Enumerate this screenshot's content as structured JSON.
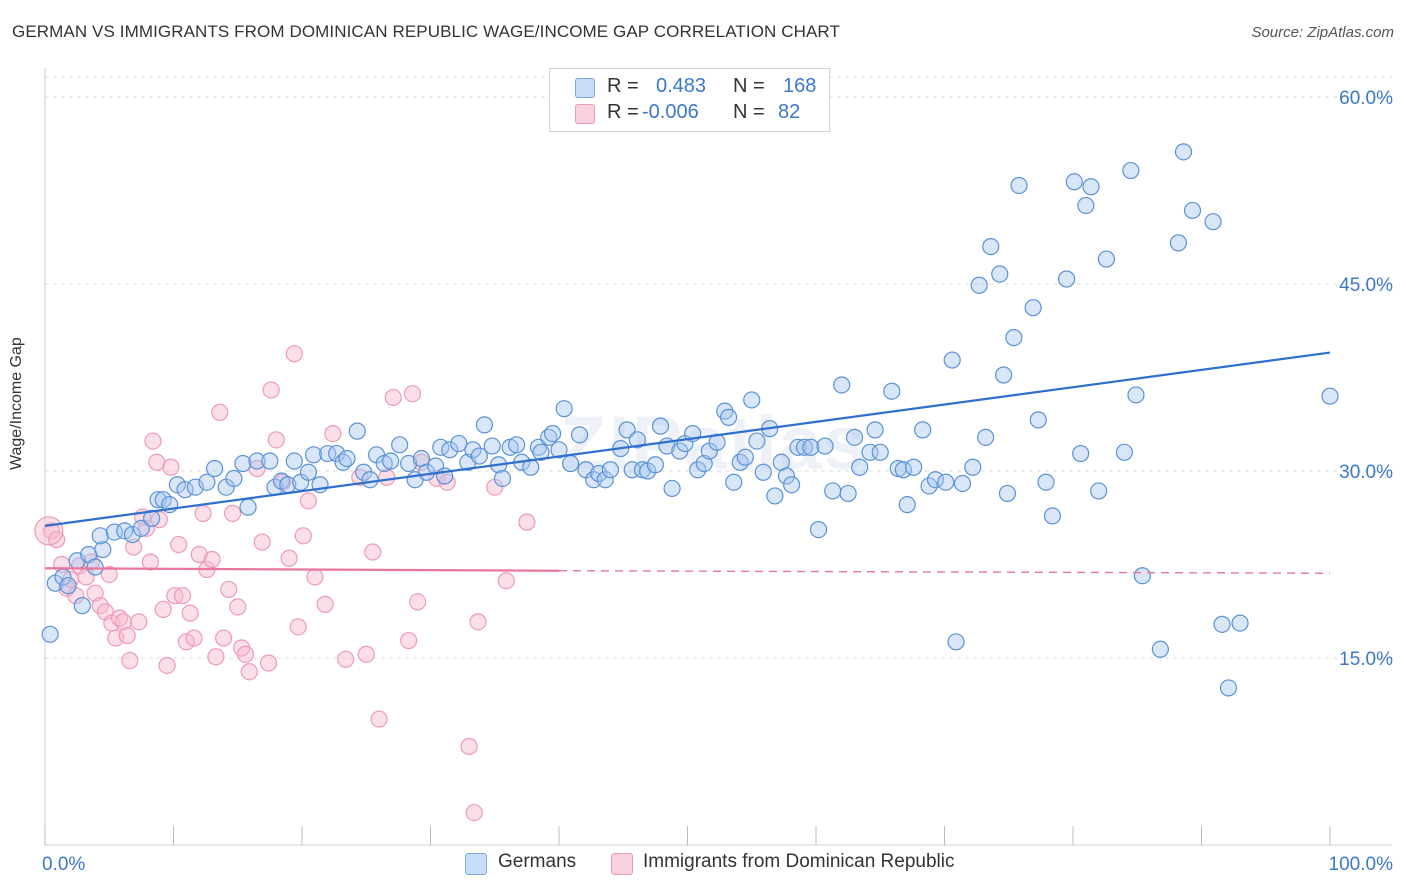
{
  "title": "GERMAN VS IMMIGRANTS FROM DOMINICAN REPUBLIC WAGE/INCOME GAP CORRELATION CHART",
  "source": "Source: ZipAtlas.com",
  "watermark": "ZIPatlas",
  "legend": {
    "r_label": "R =",
    "n_label": "N =",
    "series": [
      {
        "r": "0.483",
        "n": "168",
        "color": "#a9c8f0"
      },
      {
        "r": "-0.006",
        "n": "82",
        "color": "#f7b8cc"
      }
    ]
  },
  "bottom_legend": [
    "Germans",
    "Immigrants from Dominican Republic"
  ],
  "chart_data": {
    "type": "scatter",
    "title": "GERMAN VS IMMIGRANTS FROM DOMINICAN REPUBLIC WAGE/INCOME GAP CORRELATION CHART",
    "xlabel": "",
    "ylabel": "Wage/Income Gap",
    "xlim": [
      0,
      100
    ],
    "ylim": [
      0,
      60
    ],
    "x_tick_labels": [
      "0.0%",
      "100.0%"
    ],
    "y_ticks": [
      15,
      30,
      45,
      60
    ],
    "y_tick_labels": [
      "15.0%",
      "30.0%",
      "45.0%",
      "60.0%"
    ],
    "grid": true,
    "legend_position": "top-center",
    "colors": {
      "Germans": "#3a78c9",
      "Immigrants from Dominican Republic": "#e8769d"
    },
    "series": [
      {
        "name": "Germans",
        "trend": {
          "x": [
            0,
            100
          ],
          "y": [
            25.6,
            39.5
          ]
        },
        "points": [
          [
            0.4,
            16.9
          ],
          [
            0.8,
            21
          ],
          [
            1.4,
            21.5
          ],
          [
            1.8,
            20.8
          ],
          [
            2.5,
            22.8
          ],
          [
            2.9,
            19.2
          ],
          [
            3.4,
            23.3
          ],
          [
            3.9,
            22.3
          ],
          [
            4.5,
            23.7
          ],
          [
            4.3,
            24.8
          ],
          [
            5.4,
            25.1
          ],
          [
            6.2,
            25.2
          ],
          [
            6.8,
            24.9
          ],
          [
            7.5,
            25.4
          ],
          [
            8.3,
            26.2
          ],
          [
            8.8,
            27.7
          ],
          [
            9.2,
            27.7
          ],
          [
            9.7,
            27.3
          ],
          [
            10.3,
            28.9
          ],
          [
            10.9,
            28.5
          ],
          [
            11.7,
            28.7
          ],
          [
            12.6,
            29.1
          ],
          [
            13.2,
            30.2
          ],
          [
            14.1,
            28.7
          ],
          [
            14.7,
            29.4
          ],
          [
            15.4,
            30.6
          ],
          [
            15.8,
            27.1
          ],
          [
            16.5,
            30.8
          ],
          [
            17.5,
            30.8
          ],
          [
            17.9,
            28.7
          ],
          [
            18.4,
            29.2
          ],
          [
            18.9,
            28.9
          ],
          [
            19.4,
            30.8
          ],
          [
            19.9,
            29.1
          ],
          [
            20.5,
            29.9
          ],
          [
            20.9,
            31.3
          ],
          [
            21.4,
            28.9
          ],
          [
            22.0,
            31.4
          ],
          [
            22.7,
            31.4
          ],
          [
            23.2,
            30.7
          ],
          [
            23.5,
            31.0
          ],
          [
            24.3,
            33.2
          ],
          [
            24.8,
            29.9
          ],
          [
            25.3,
            29.3
          ],
          [
            25.8,
            31.3
          ],
          [
            26.4,
            30.6
          ],
          [
            26.9,
            30.8
          ],
          [
            27.6,
            32.1
          ],
          [
            28.3,
            30.6
          ],
          [
            28.8,
            29.3
          ],
          [
            29.3,
            31.0
          ],
          [
            29.7,
            29.9
          ],
          [
            30.4,
            30.4
          ],
          [
            30.8,
            31.9
          ],
          [
            31.1,
            29.6
          ],
          [
            31.5,
            31.7
          ],
          [
            32.2,
            32.2
          ],
          [
            32.9,
            30.7
          ],
          [
            33.3,
            31.7
          ],
          [
            33.8,
            31.2
          ],
          [
            34.2,
            33.7
          ],
          [
            34.8,
            32.0
          ],
          [
            35.3,
            30.5
          ],
          [
            35.6,
            29.4
          ],
          [
            36.2,
            31.9
          ],
          [
            36.7,
            32.1
          ],
          [
            37.1,
            30.7
          ],
          [
            37.8,
            30.3
          ],
          [
            38.4,
            31.9
          ],
          [
            38.6,
            31.5
          ],
          [
            39.2,
            32.7
          ],
          [
            39.5,
            33.0
          ],
          [
            40.0,
            31.7
          ],
          [
            40.4,
            35.0
          ],
          [
            40.9,
            30.6
          ],
          [
            41.6,
            32.9
          ],
          [
            42.1,
            30.1
          ],
          [
            42.7,
            29.3
          ],
          [
            43.1,
            29.8
          ],
          [
            43.6,
            29.3
          ],
          [
            44.0,
            30.1
          ],
          [
            44.8,
            31.8
          ],
          [
            45.3,
            33.3
          ],
          [
            45.7,
            30.1
          ],
          [
            46.1,
            32.5
          ],
          [
            46.5,
            30.1
          ],
          [
            46.9,
            30.0
          ],
          [
            47.5,
            30.5
          ],
          [
            47.9,
            33.6
          ],
          [
            48.4,
            32.0
          ],
          [
            48.8,
            28.6
          ],
          [
            49.4,
            31.6
          ],
          [
            49.8,
            32.2
          ],
          [
            50.4,
            33.0
          ],
          [
            50.8,
            30.1
          ],
          [
            51.3,
            30.6
          ],
          [
            51.7,
            31.6
          ],
          [
            52.3,
            32.3
          ],
          [
            52.9,
            34.8
          ],
          [
            53.2,
            34.3
          ],
          [
            53.6,
            29.1
          ],
          [
            54.1,
            30.7
          ],
          [
            54.5,
            31.1
          ],
          [
            55.0,
            35.7
          ],
          [
            55.4,
            32.4
          ],
          [
            55.9,
            29.9
          ],
          [
            56.4,
            33.4
          ],
          [
            56.8,
            28.0
          ],
          [
            57.3,
            30.7
          ],
          [
            57.7,
            29.6
          ],
          [
            58.1,
            28.9
          ],
          [
            58.6,
            31.9
          ],
          [
            59.1,
            31.9
          ],
          [
            59.6,
            31.9
          ],
          [
            60.2,
            25.3
          ],
          [
            60.7,
            32.0
          ],
          [
            61.3,
            28.4
          ],
          [
            62.0,
            36.9
          ],
          [
            62.5,
            28.2
          ],
          [
            63.0,
            32.7
          ],
          [
            63.4,
            30.3
          ],
          [
            64.2,
            31.5
          ],
          [
            64.6,
            33.3
          ],
          [
            65.0,
            31.5
          ],
          [
            65.9,
            36.4
          ],
          [
            66.4,
            30.2
          ],
          [
            66.8,
            30.1
          ],
          [
            67.1,
            27.3
          ],
          [
            67.6,
            30.3
          ],
          [
            68.3,
            33.3
          ],
          [
            68.8,
            28.8
          ],
          [
            69.3,
            29.3
          ],
          [
            70.1,
            29.1
          ],
          [
            70.6,
            38.9
          ],
          [
            70.9,
            16.3
          ],
          [
            71.4,
            29.0
          ],
          [
            72.2,
            30.3
          ],
          [
            72.7,
            44.9
          ],
          [
            73.2,
            32.7
          ],
          [
            73.6,
            48.0
          ],
          [
            74.3,
            45.8
          ],
          [
            74.6,
            37.7
          ],
          [
            74.9,
            28.2
          ],
          [
            75.4,
            40.7
          ],
          [
            75.8,
            52.9
          ],
          [
            76.9,
            43.1
          ],
          [
            77.3,
            34.1
          ],
          [
            77.9,
            29.1
          ],
          [
            78.4,
            26.4
          ],
          [
            79.5,
            45.4
          ],
          [
            80.1,
            53.2
          ],
          [
            80.6,
            31.4
          ],
          [
            81.0,
            51.3
          ],
          [
            81.4,
            52.8
          ],
          [
            82.0,
            28.4
          ],
          [
            82.6,
            47.0
          ],
          [
            84.0,
            31.5
          ],
          [
            84.5,
            54.1
          ],
          [
            84.9,
            36.1
          ],
          [
            85.4,
            21.6
          ],
          [
            86.8,
            15.7
          ],
          [
            88.2,
            48.3
          ],
          [
            88.6,
            55.6
          ],
          [
            89.3,
            50.9
          ],
          [
            90.9,
            50.0
          ],
          [
            91.6,
            17.7
          ],
          [
            92.1,
            12.6
          ],
          [
            93.0,
            17.8
          ],
          [
            100.0,
            36.0
          ]
        ]
      },
      {
        "name": "Immigrants from Dominican Republic",
        "trend": {
          "x": [
            0,
            40
          ],
          "y": [
            22.2,
            22.0
          ],
          "dashed_to": [
            100,
            21.8
          ]
        },
        "points": [
          [
            0.5,
            25.2
          ],
          [
            0.9,
            24.5
          ],
          [
            1.3,
            22.5
          ],
          [
            1.7,
            20.6
          ],
          [
            2.0,
            21.3
          ],
          [
            2.4,
            20.0
          ],
          [
            2.7,
            22.4
          ],
          [
            3.2,
            21.5
          ],
          [
            3.6,
            22.7
          ],
          [
            3.9,
            20.2
          ],
          [
            4.3,
            19.2
          ],
          [
            4.7,
            18.7
          ],
          [
            5.0,
            21.7
          ],
          [
            5.2,
            17.8
          ],
          [
            5.5,
            16.6
          ],
          [
            5.8,
            18.2
          ],
          [
            6.1,
            17.9
          ],
          [
            6.4,
            16.8
          ],
          [
            6.6,
            14.8
          ],
          [
            6.9,
            23.9
          ],
          [
            7.3,
            17.9
          ],
          [
            7.6,
            26.3
          ],
          [
            7.9,
            25.4
          ],
          [
            8.2,
            22.7
          ],
          [
            8.4,
            32.4
          ],
          [
            8.7,
            30.7
          ],
          [
            8.9,
            26.1
          ],
          [
            9.2,
            18.9
          ],
          [
            9.5,
            14.4
          ],
          [
            9.8,
            30.3
          ],
          [
            10.1,
            20.0
          ],
          [
            10.4,
            24.1
          ],
          [
            10.7,
            20.0
          ],
          [
            11.0,
            16.3
          ],
          [
            11.3,
            18.6
          ],
          [
            11.6,
            16.6
          ],
          [
            12.0,
            23.3
          ],
          [
            12.3,
            26.6
          ],
          [
            12.6,
            22.1
          ],
          [
            13.0,
            22.9
          ],
          [
            13.3,
            15.1
          ],
          [
            13.6,
            34.7
          ],
          [
            13.9,
            16.6
          ],
          [
            14.3,
            20.5
          ],
          [
            14.6,
            26.6
          ],
          [
            15.0,
            19.1
          ],
          [
            15.3,
            15.8
          ],
          [
            15.6,
            15.3
          ],
          [
            15.9,
            13.9
          ],
          [
            16.5,
            30.2
          ],
          [
            16.9,
            24.3
          ],
          [
            17.4,
            14.6
          ],
          [
            17.6,
            36.5
          ],
          [
            18.0,
            32.5
          ],
          [
            18.5,
            29.1
          ],
          [
            19.0,
            23.0
          ],
          [
            19.4,
            39.4
          ],
          [
            19.7,
            17.5
          ],
          [
            20.1,
            24.8
          ],
          [
            20.5,
            27.6
          ],
          [
            21.0,
            21.5
          ],
          [
            21.8,
            19.3
          ],
          [
            22.4,
            33.0
          ],
          [
            23.4,
            14.9
          ],
          [
            24.5,
            29.5
          ],
          [
            25.0,
            15.3
          ],
          [
            25.5,
            23.5
          ],
          [
            26.0,
            10.1
          ],
          [
            26.6,
            29.5
          ],
          [
            27.1,
            35.9
          ],
          [
            28.3,
            16.4
          ],
          [
            28.6,
            36.2
          ],
          [
            29.0,
            19.5
          ],
          [
            29.3,
            30.7
          ],
          [
            30.5,
            29.4
          ],
          [
            31.3,
            29.1
          ],
          [
            33.0,
            7.9
          ],
          [
            33.4,
            2.6
          ],
          [
            33.7,
            17.9
          ],
          [
            35.0,
            28.7
          ],
          [
            35.9,
            21.2
          ],
          [
            37.5,
            25.9
          ]
        ]
      }
    ]
  }
}
